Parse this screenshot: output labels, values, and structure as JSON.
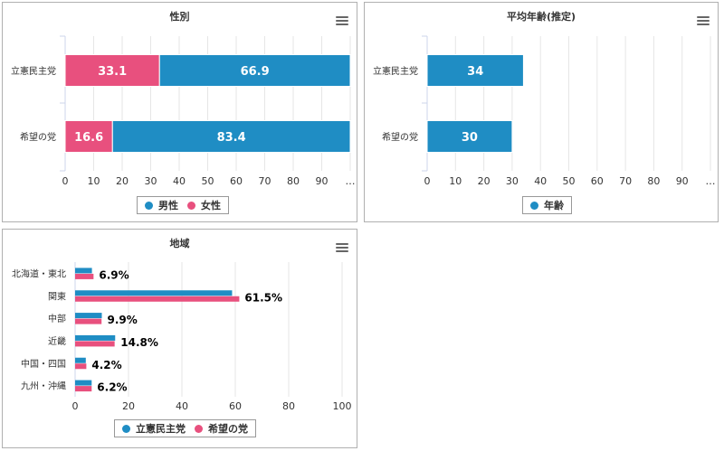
{
  "colors": {
    "blue": "#1f8dc4",
    "pink": "#e8507e"
  },
  "gender_legend": [
    "男性",
    "女性"
  ],
  "age_legend": [
    "年齢"
  ],
  "region_legend": [
    "立憲民主党",
    "希望の党"
  ],
  "chart_data": [
    {
      "type": "bar",
      "stacking": "percent",
      "title": "性別",
      "categories": [
        "立憲民主党",
        "希望の党"
      ],
      "series": [
        {
          "name": "女性",
          "values": [
            33.1,
            16.6
          ]
        },
        {
          "name": "男性",
          "values": [
            66.9,
            83.4
          ]
        }
      ],
      "x_ticks": [
        "0",
        "10",
        "20",
        "30",
        "40",
        "50",
        "60",
        "70",
        "80",
        "90",
        "…"
      ],
      "xlim": [
        0,
        100
      ]
    },
    {
      "type": "bar",
      "title": "平均年齢(推定)",
      "categories": [
        "立憲民主党",
        "希望の党"
      ],
      "series": [
        {
          "name": "年齢",
          "values": [
            34,
            30
          ]
        }
      ],
      "x_ticks": [
        "0",
        "10",
        "20",
        "30",
        "40",
        "50",
        "60",
        "70",
        "80",
        "90",
        "…"
      ],
      "xlim": [
        0,
        100
      ]
    },
    {
      "type": "bar",
      "title": "地域",
      "categories": [
        "北海道・東北",
        "関東",
        "中部",
        "近畿",
        "中国・四国",
        "九州・沖縄"
      ],
      "series": [
        {
          "name": "立憲民主党",
          "values": [
            6.3,
            58.8,
            10.0,
            15.0,
            4.0,
            6.2
          ]
        },
        {
          "name": "希望の党",
          "values": [
            6.9,
            61.5,
            9.9,
            14.8,
            4.2,
            6.2
          ]
        }
      ],
      "data_labels": [
        "6.9%",
        "61.5%",
        "9.9%",
        "14.8%",
        "4.2%",
        "6.2%"
      ],
      "x_ticks": [
        "0",
        "20",
        "40",
        "60",
        "80",
        "100"
      ],
      "xlim": [
        0,
        100
      ]
    }
  ]
}
